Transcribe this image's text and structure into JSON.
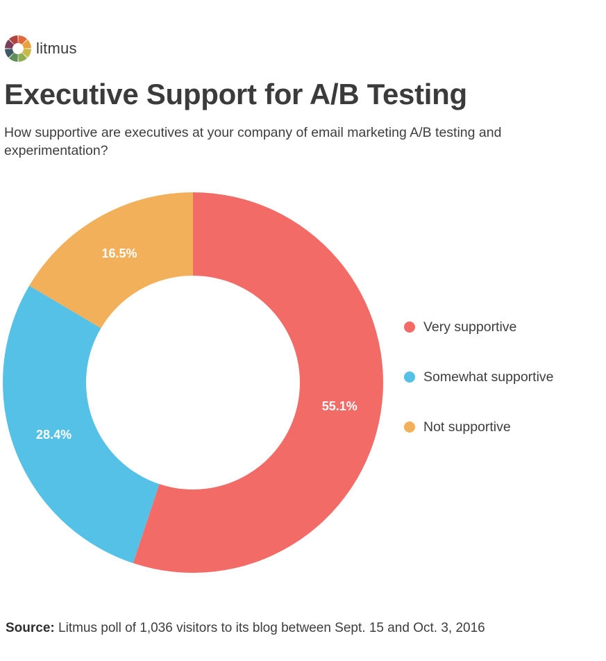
{
  "brand": {
    "name": "litmus"
  },
  "header": {
    "title": "Executive Support for A/B Testing",
    "subtitle": "How supportive are executives at your company of email marketing A/B testing and experimentation?"
  },
  "footer": {
    "source_label": "Source:",
    "source_text": "Litmus poll of 1,036 visitors to its blog between Sept. 15 and Oct. 3, 2016"
  },
  "colors": {
    "very": "#f26b66",
    "somewhat": "#55c1e6",
    "not": "#f2b05b",
    "logo_segments": [
      "#e06a3c",
      "#e9a23b",
      "#c9b84a",
      "#8fae54",
      "#5e8f5a",
      "#3f5a66",
      "#7a3e58",
      "#b3433e"
    ]
  },
  "chart_data": {
    "type": "pie",
    "donut": true,
    "categories": [
      "Very supportive",
      "Somewhat supportive",
      "Not supportive"
    ],
    "values": [
      55.1,
      28.4,
      16.5
    ],
    "data_labels": [
      "55.1%",
      "28.4%",
      "16.5%"
    ],
    "colors": [
      "#f26b66",
      "#55c1e6",
      "#f2b05b"
    ],
    "start": "12 o'clock, clockwise",
    "legend_position": "right"
  }
}
